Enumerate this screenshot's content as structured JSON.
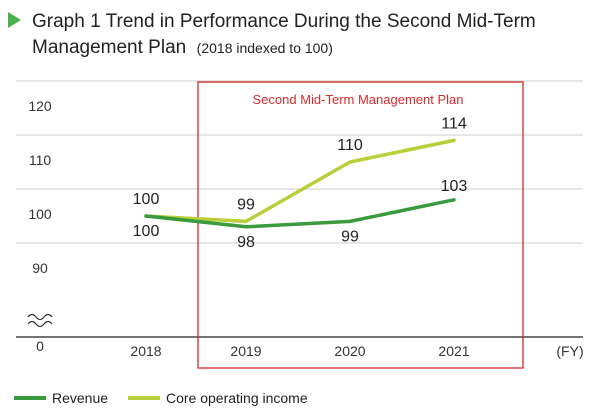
{
  "header": {
    "title_line1": "Graph 1 Trend in Performance During the Second Mid-Term",
    "title_line2": "Management Plan",
    "title_note": "(2018 indexed to 100)"
  },
  "plan_box": {
    "label": "Second Mid-Term Management Plan"
  },
  "chart_data": {
    "type": "line",
    "title": "Graph 1 Trend in Performance During the Second Mid-Term Management Plan (2018 indexed to 100)",
    "x": [
      "2018",
      "2019",
      "2020",
      "2021"
    ],
    "xunit": "(FY)",
    "ylim": [
      85,
      125
    ],
    "yticks": [
      "120",
      "110",
      "100",
      "90"
    ],
    "y_axis_break": true,
    "y_break_zero_label": "0",
    "grid": "horizontal",
    "legend_position": "bottom-left",
    "series": [
      {
        "name": "Revenue",
        "color": "#3a9a3e",
        "values": [
          100,
          98,
          99,
          103
        ],
        "labels": [
          "100",
          "98",
          "99",
          "103"
        ]
      },
      {
        "name": "Core operating income",
        "color": "#b9cf3a",
        "values": [
          100,
          99,
          110,
          114
        ],
        "labels": [
          "100",
          "99",
          "110",
          "114"
        ]
      }
    ]
  },
  "colors": {
    "accent_triangle": "#4caf50",
    "plan_box": "#d62b2b",
    "grid": "#cccccc",
    "axis": "#222222"
  }
}
